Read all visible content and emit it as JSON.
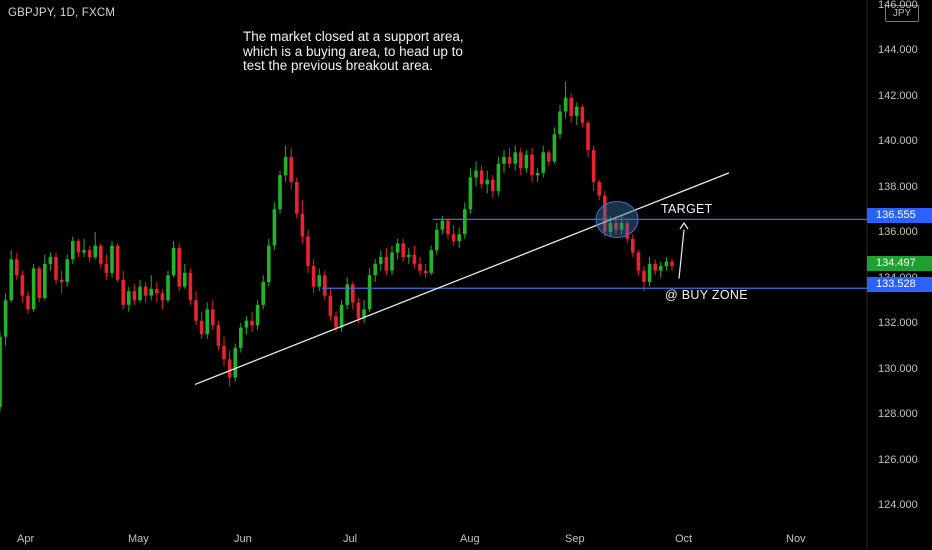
{
  "header": {
    "symbol": "GBPJPY, 1D, FXCM",
    "currency": "JPY"
  },
  "annotations": {
    "note_lines": [
      "The market closed at a support area,",
      "which is a buying area, to head up to",
      "test the previous breakout area."
    ],
    "target": "TARGET",
    "buy_zone": "@ BUY ZONE"
  },
  "price_tags": {
    "target": {
      "text": "136.555",
      "color": "#2962ff"
    },
    "last": {
      "text": "134.497",
      "color": "#1ea12e"
    },
    "zone": {
      "text": "133.528",
      "color": "#2962ff"
    }
  },
  "chart_data": {
    "type": "candlestick",
    "title": "GBPJPY, 1D, FXCM",
    "y_ticks": [
      124,
      126,
      128,
      130,
      132,
      134,
      136,
      138,
      140,
      142,
      144,
      146
    ],
    "y_tick_labels": [
      "124.000",
      "126.000",
      "128.000",
      "130.000",
      "132.000",
      "134.000",
      "136.000",
      "138.000",
      "140.000",
      "142.000",
      "144.000",
      "146.000"
    ],
    "x_tick_labels": [
      "Apr",
      "May",
      "Jun",
      "Jul",
      "Aug",
      "Sep",
      "Oct",
      "Nov"
    ],
    "ylim": [
      122.3,
      146.3
    ],
    "horizontal_lines": [
      {
        "name": "TARGET",
        "price": 136.555
      },
      {
        "name": "@ BUY ZONE",
        "price": 133.528
      }
    ],
    "trendline": {
      "from": [
        "May 16",
        129.3
      ],
      "to": [
        "Oct 12",
        138.6
      ]
    },
    "colors": {
      "up": "#22b329",
      "down": "#e8232f"
    },
    "series": [
      {
        "name": "GBPJPY",
        "ohlc": [
          [
            128.3,
            131.6,
            128.1,
            131.4
          ],
          [
            131.4,
            133.3,
            131.0,
            133.0
          ],
          [
            133.0,
            135.2,
            132.9,
            134.8
          ],
          [
            134.8,
            135.1,
            133.9,
            134.1
          ],
          [
            134.1,
            134.3,
            132.9,
            133.2
          ],
          [
            133.2,
            133.4,
            132.4,
            132.6
          ],
          [
            132.6,
            134.6,
            132.5,
            134.4
          ],
          [
            134.4,
            134.5,
            132.9,
            133.1
          ],
          [
            133.1,
            135.0,
            133.0,
            134.6
          ],
          [
            134.6,
            135.1,
            134.3,
            134.9
          ],
          [
            134.9,
            135.1,
            133.7,
            133.9
          ],
          [
            133.9,
            134.3,
            133.3,
            133.8
          ],
          [
            133.8,
            135.0,
            133.6,
            134.8
          ],
          [
            134.8,
            135.8,
            134.6,
            135.6
          ],
          [
            135.6,
            135.7,
            134.9,
            135.1
          ],
          [
            135.1,
            135.7,
            134.9,
            135.2
          ],
          [
            135.2,
            135.4,
            134.7,
            134.9
          ],
          [
            134.9,
            136.0,
            134.8,
            135.4
          ],
          [
            135.4,
            135.5,
            134.4,
            134.6
          ],
          [
            134.6,
            135.0,
            133.9,
            134.2
          ],
          [
            134.2,
            135.6,
            134.0,
            135.4
          ],
          [
            135.4,
            135.5,
            133.8,
            133.9
          ],
          [
            133.9,
            134.3,
            132.6,
            132.8
          ],
          [
            132.8,
            133.6,
            132.5,
            133.4
          ],
          [
            133.4,
            133.7,
            132.8,
            133.0
          ],
          [
            133.0,
            133.9,
            132.9,
            133.6
          ],
          [
            133.6,
            133.8,
            132.9,
            133.2
          ],
          [
            133.2,
            134.1,
            133.0,
            133.5
          ],
          [
            133.5,
            133.8,
            132.9,
            133.3
          ],
          [
            133.3,
            133.5,
            132.6,
            133.0
          ],
          [
            133.0,
            134.3,
            132.9,
            134.1
          ],
          [
            134.1,
            135.6,
            134.0,
            135.3
          ],
          [
            135.3,
            135.5,
            133.4,
            133.6
          ],
          [
            133.6,
            134.6,
            133.5,
            134.2
          ],
          [
            134.2,
            134.4,
            132.8,
            133.0
          ],
          [
            133.0,
            133.4,
            131.9,
            132.1
          ],
          [
            132.1,
            132.5,
            131.3,
            131.5
          ],
          [
            131.5,
            132.9,
            131.3,
            132.6
          ],
          [
            132.6,
            133.0,
            131.7,
            131.9
          ],
          [
            131.9,
            132.1,
            130.8,
            131.0
          ],
          [
            131.0,
            131.4,
            130.1,
            130.4
          ],
          [
            130.4,
            130.8,
            129.2,
            129.6
          ],
          [
            129.6,
            131.1,
            129.4,
            130.9
          ],
          [
            130.9,
            132.0,
            130.7,
            131.8
          ],
          [
            131.8,
            132.3,
            131.5,
            132.1
          ],
          [
            132.1,
            132.5,
            131.6,
            131.9
          ],
          [
            131.9,
            133.0,
            131.7,
            132.8
          ],
          [
            132.8,
            134.1,
            132.6,
            133.8
          ],
          [
            133.8,
            135.7,
            133.6,
            135.4
          ],
          [
            135.4,
            137.3,
            135.2,
            137.0
          ],
          [
            137.0,
            138.7,
            136.8,
            138.5
          ],
          [
            138.5,
            139.8,
            138.2,
            139.3
          ],
          [
            139.3,
            139.7,
            137.9,
            138.2
          ],
          [
            138.2,
            138.4,
            136.6,
            136.8
          ],
          [
            136.8,
            137.4,
            135.5,
            135.8
          ],
          [
            135.8,
            136.1,
            134.2,
            134.5
          ],
          [
            134.5,
            134.8,
            133.3,
            133.6
          ],
          [
            133.6,
            134.4,
            133.4,
            134.1
          ],
          [
            134.1,
            134.3,
            133.0,
            133.2
          ],
          [
            133.2,
            133.5,
            132.1,
            132.3
          ],
          [
            132.3,
            132.5,
            131.6,
            131.8
          ],
          [
            131.8,
            133.0,
            131.6,
            132.8
          ],
          [
            132.8,
            134.0,
            132.6,
            133.7
          ],
          [
            133.7,
            133.8,
            132.6,
            132.9
          ],
          [
            132.9,
            133.1,
            132.0,
            132.2
          ],
          [
            132.2,
            133.0,
            132.0,
            132.6
          ],
          [
            132.6,
            134.4,
            132.5,
            134.1
          ],
          [
            134.1,
            134.8,
            133.8,
            134.6
          ],
          [
            134.6,
            135.2,
            134.3,
            134.9
          ],
          [
            134.9,
            135.3,
            134.1,
            134.3
          ],
          [
            134.3,
            135.4,
            134.1,
            135.1
          ],
          [
            135.1,
            135.7,
            134.8,
            135.5
          ],
          [
            135.5,
            135.7,
            134.7,
            134.9
          ],
          [
            134.9,
            135.3,
            134.6,
            135.0
          ],
          [
            135.0,
            135.4,
            134.4,
            134.6
          ],
          [
            134.6,
            134.9,
            134.1,
            134.3
          ],
          [
            134.3,
            134.6,
            134.0,
            134.2
          ],
          [
            134.2,
            135.4,
            134.1,
            135.2
          ],
          [
            135.2,
            136.4,
            135.0,
            136.1
          ],
          [
            136.1,
            136.7,
            135.9,
            136.5
          ],
          [
            136.5,
            136.6,
            135.7,
            135.9
          ],
          [
            135.9,
            136.3,
            135.4,
            135.6
          ],
          [
            135.6,
            136.2,
            135.3,
            135.9
          ],
          [
            135.9,
            137.3,
            135.7,
            137.0
          ],
          [
            137.0,
            138.8,
            136.8,
            138.4
          ],
          [
            138.4,
            139.1,
            138.0,
            138.7
          ],
          [
            138.7,
            138.9,
            137.9,
            138.1
          ],
          [
            138.1,
            138.7,
            137.7,
            138.3
          ],
          [
            138.3,
            138.5,
            137.5,
            137.8
          ],
          [
            137.8,
            139.3,
            137.6,
            139.0
          ],
          [
            139.0,
            139.6,
            138.6,
            139.3
          ],
          [
            139.3,
            139.7,
            138.8,
            139.0
          ],
          [
            139.0,
            139.8,
            138.7,
            139.5
          ],
          [
            139.5,
            139.7,
            138.5,
            138.8
          ],
          [
            138.8,
            139.6,
            138.6,
            139.4
          ],
          [
            139.4,
            139.7,
            138.2,
            138.5
          ],
          [
            138.5,
            138.8,
            138.2,
            138.6
          ],
          [
            138.6,
            139.8,
            138.4,
            139.5
          ],
          [
            139.5,
            139.6,
            138.9,
            139.1
          ],
          [
            139.1,
            140.6,
            139.0,
            140.3
          ],
          [
            140.3,
            141.6,
            140.1,
            141.3
          ],
          [
            141.3,
            142.6,
            141.0,
            141.9
          ],
          [
            141.9,
            142.1,
            140.8,
            141.1
          ],
          [
            141.1,
            141.7,
            140.7,
            141.5
          ],
          [
            141.5,
            141.6,
            140.6,
            140.8
          ],
          [
            140.8,
            140.9,
            139.3,
            139.6
          ],
          [
            139.6,
            139.8,
            137.8,
            138.2
          ],
          [
            138.2,
            138.3,
            137.4,
            137.6
          ],
          [
            137.6,
            137.8,
            135.8,
            136.0
          ],
          [
            136.0,
            136.7,
            135.8,
            136.4
          ],
          [
            136.4,
            136.6,
            135.9,
            136.1
          ],
          [
            136.1,
            136.7,
            135.9,
            136.4
          ],
          [
            136.4,
            136.5,
            135.5,
            135.7
          ],
          [
            135.7,
            135.9,
            134.9,
            135.1
          ],
          [
            135.1,
            135.2,
            134.1,
            134.3
          ],
          [
            134.3,
            134.5,
            133.4,
            133.8
          ],
          [
            133.8,
            134.9,
            133.6,
            134.6
          ],
          [
            134.6,
            134.8,
            134.1,
            134.3
          ],
          [
            134.3,
            134.7,
            134.0,
            134.5
          ],
          [
            134.5,
            134.9,
            134.3,
            134.7
          ],
          [
            134.7,
            134.8,
            134.3,
            134.497
          ]
        ]
      }
    ]
  }
}
